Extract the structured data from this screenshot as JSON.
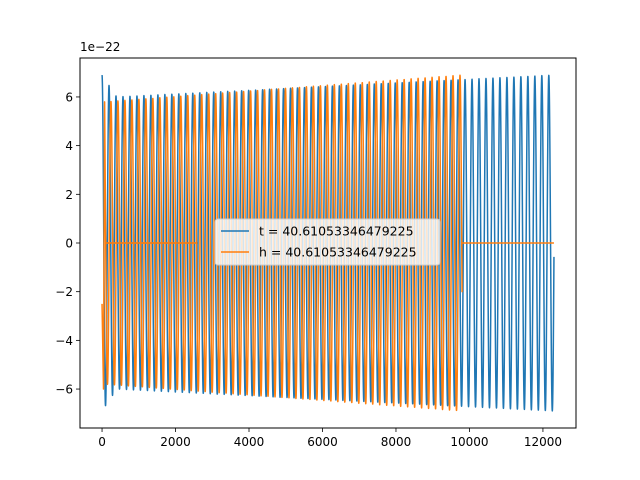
{
  "chart_data": {
    "type": "line",
    "title": "",
    "xlabel": "",
    "ylabel": "",
    "y_offset_label": "1e−22",
    "xlim": [
      -600,
      12900
    ],
    "ylim": [
      -7.6,
      7.6
    ],
    "y_scale": "1e-22",
    "x_ticks": [
      0,
      2000,
      4000,
      6000,
      8000,
      10000,
      12000
    ],
    "x_tick_labels": [
      "0",
      "2000",
      "4000",
      "6000",
      "8000",
      "10000",
      "12000"
    ],
    "y_ticks": [
      -6,
      -4,
      -2,
      0,
      2,
      4,
      6
    ],
    "y_tick_labels": [
      "−6",
      "−4",
      "−2",
      "0",
      "2",
      "4",
      "6"
    ],
    "grid": false,
    "legend_placement": "center",
    "series": [
      {
        "name": "t = 40.61053346479225",
        "color": "#1f77b4",
        "description_values": {
          "x_start": 0,
          "x_end": 12300,
          "amplitude_start": 6.9,
          "amplitude_min": 6.0,
          "amplitude_end": 6.9,
          "oscillation_period": 190,
          "flat_zero_segment": [
            100,
            2600
          ]
        }
      },
      {
        "name": "h = 40.61053346479225",
        "color": "#ff7f0e",
        "description_values": {
          "x_start": 0,
          "x_end": 12300,
          "amplitude_start": 5.8,
          "amplitude_end": 6.9,
          "oscillation_period": 190,
          "oscillation_range": [
            100,
            9800
          ],
          "flat_zero_segments": [
            [
              100,
              2600
            ],
            [
              9800,
              12300
            ]
          ]
        }
      }
    ]
  }
}
